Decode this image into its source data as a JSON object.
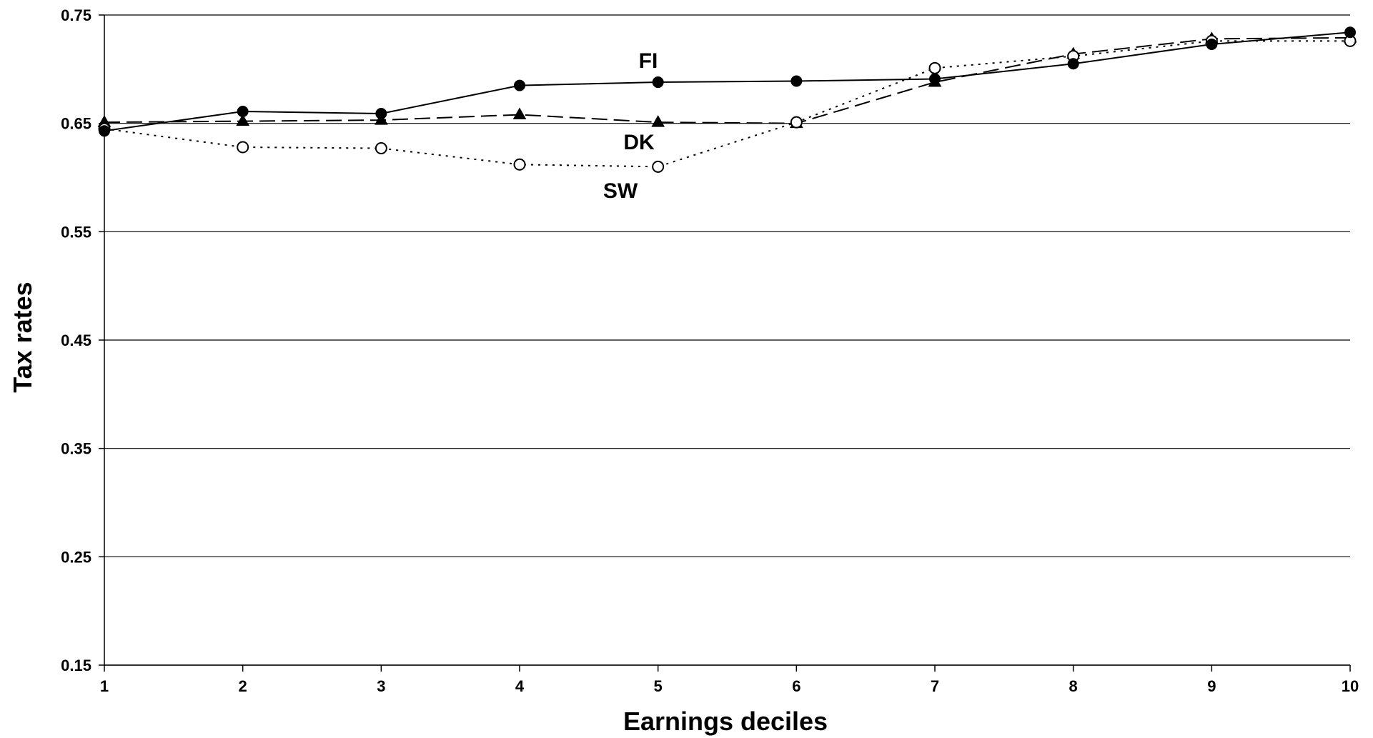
{
  "chart_data": {
    "type": "line",
    "title": "",
    "xlabel": "Earnings deciles",
    "ylabel": "Tax rates",
    "x": [
      1,
      2,
      3,
      4,
      5,
      6,
      7,
      8,
      9,
      10
    ],
    "xticks": [
      "1",
      "2",
      "3",
      "4",
      "5",
      "6",
      "7",
      "8",
      "9",
      "10"
    ],
    "ylim": [
      0.15,
      0.75
    ],
    "yticks": [
      "0.15",
      "0.25",
      "0.35",
      "0.45",
      "0.55",
      "0.65",
      "0.75"
    ],
    "grid": "horizontal",
    "series": [
      {
        "name": "FI",
        "marker": "filled-circle",
        "line_style": "solid",
        "values": [
          0.643,
          0.661,
          0.659,
          0.685,
          0.688,
          0.689,
          0.691,
          0.705,
          0.723,
          0.734
        ]
      },
      {
        "name": "DK",
        "marker": "filled-triangle",
        "line_style": "dashed",
        "values": [
          0.651,
          0.652,
          0.653,
          0.658,
          0.651,
          0.65,
          0.688,
          0.714,
          0.728,
          0.729
        ]
      },
      {
        "name": "SW",
        "marker": "open-circle",
        "line_style": "dotted",
        "values": [
          0.645,
          0.628,
          0.627,
          0.612,
          0.61,
          0.651,
          0.701,
          0.712,
          0.726,
          0.726
        ]
      }
    ]
  }
}
